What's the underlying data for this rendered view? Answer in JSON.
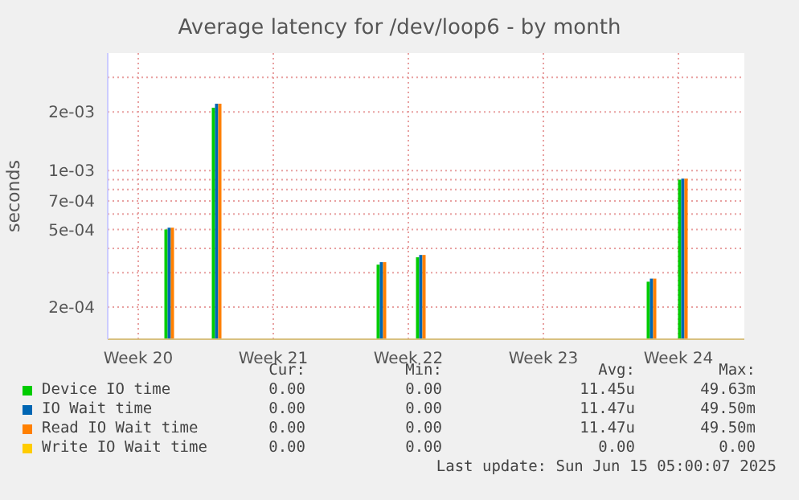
{
  "chart_data": {
    "type": "bar",
    "title": "Average latency for /dev/loop6 - by month",
    "ylabel": "seconds",
    "log": "y",
    "grid": true,
    "legend": "bottom",
    "x": [
      "2025-05-16T11:00",
      "2025-05-18T22:00",
      "2025-05-27T11:00",
      "2025-05-29T12:00",
      "2025-06-10T11:00",
      "2025-06-12T02:00"
    ],
    "xlim": [
      "2025-05-13T05:00",
      "2025-06-15T05:00"
    ],
    "xticks": [
      {
        "value": "2025-05-14T19:00",
        "label": "Week 20"
      },
      {
        "value": "2025-05-21T19:00",
        "label": "Week 21"
      },
      {
        "value": "2025-05-28T19:00",
        "label": "Week 22"
      },
      {
        "value": "2025-06-04T19:00",
        "label": "Week 23"
      },
      {
        "value": "2025-06-11T19:00",
        "label": "Week 24"
      }
    ],
    "ylim": [
      0.000137,
      0.004
    ],
    "yticks": [
      {
        "value": 0.0002,
        "label": "2e-04"
      },
      {
        "value": 0.0003,
        "label": null
      },
      {
        "value": 0.0004,
        "label": null
      },
      {
        "value": 0.0005,
        "label": "5e-04"
      },
      {
        "value": 0.0006,
        "label": null
      },
      {
        "value": 0.0007,
        "label": "7e-04"
      },
      {
        "value": 0.0008,
        "label": null
      },
      {
        "value": 0.0009,
        "label": null
      },
      {
        "value": 0.001,
        "label": "1e-03"
      },
      {
        "value": 0.002,
        "label": "2e-03"
      },
      {
        "value": 0.003,
        "label": null
      }
    ],
    "series": [
      {
        "name": "Device IO time",
        "color": "#00cc00",
        "values": [
          0.0005,
          0.0021,
          0.00033,
          0.00036,
          0.00027,
          0.0009
        ]
      },
      {
        "name": "IO Wait time",
        "color": "#0066b3",
        "values": [
          0.00051,
          0.0022,
          0.00034,
          0.00037,
          0.00028,
          0.00091
        ]
      },
      {
        "name": "Read IO Wait time",
        "color": "#ff8000",
        "values": [
          0.00051,
          0.0022,
          0.00034,
          0.00037,
          0.00028,
          0.00091
        ]
      },
      {
        "name": "Write IO Wait time",
        "color": "#ffcc00",
        "values": [
          null,
          null,
          null,
          null,
          null,
          null
        ]
      }
    ],
    "annotations": [
      "Cur:",
      "Min:",
      "Avg:",
      "Max:",
      "0.00",
      "0.00",
      "11.45u",
      "49.63m",
      "0.00",
      "0.00",
      "11.47u",
      "49.50m",
      "0.00",
      "0.00",
      "11.47u",
      "49.50m",
      "0.00",
      "0.00",
      "0.00",
      "0.00",
      "Last update: Sun Jun 15 05:00:07 2025"
    ]
  }
}
